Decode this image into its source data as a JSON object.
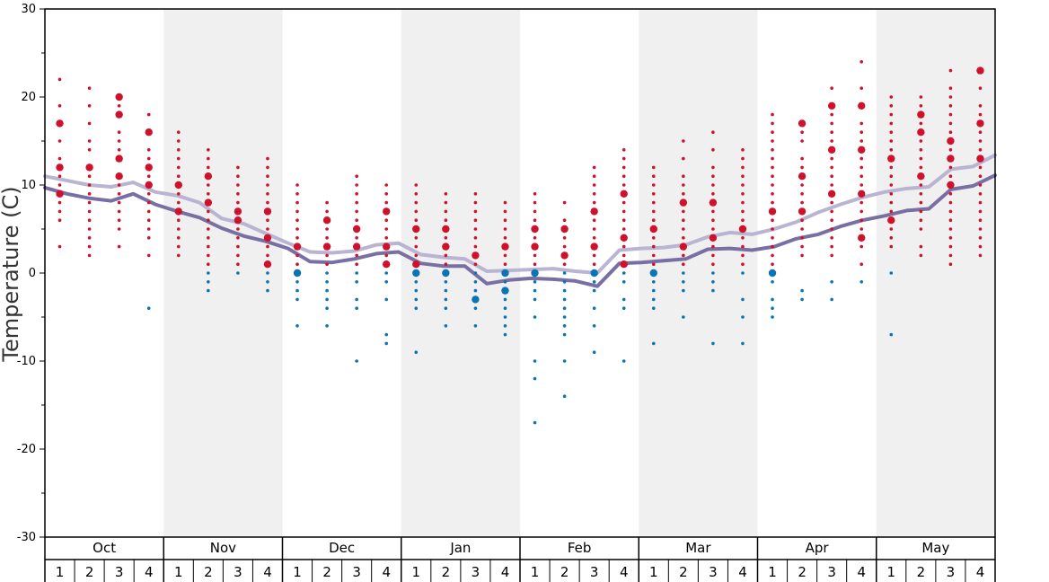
{
  "chart_data": {
    "type": "scatter",
    "ylabel": "Temperature (C)",
    "ylim": [
      -30,
      30
    ],
    "yticks": [
      -30,
      -20,
      -10,
      0,
      10,
      20,
      30
    ],
    "months": [
      "Oct",
      "Nov",
      "Dec",
      "Jan",
      "Feb",
      "Mar",
      "Apr",
      "May"
    ],
    "weeks": [
      "1",
      "2",
      "3",
      "4"
    ],
    "shaded_months": [
      "Nov",
      "Jan",
      "Mar",
      "May"
    ],
    "colors": {
      "warm_dots": "#d0112b",
      "cold_dots": "#0a74b5",
      "upper_line": "#b9b4d2",
      "lower_line": "#7a6fa3",
      "shade": "#f0f0f0"
    },
    "series": [
      {
        "kind": "line",
        "style": "upper",
        "values": [
          11.0,
          10.5,
          10.0,
          9.8,
          10.3,
          9.2,
          8.8,
          8.0,
          6.2,
          5.6,
          4.5,
          3.4,
          2.4,
          2.3,
          2.5,
          3.2,
          3.4,
          2.1,
          1.8,
          1.6,
          0.2,
          0.3,
          0.4,
          0.5,
          0.2,
          0.0,
          2.6,
          2.8,
          2.9,
          3.2,
          4.1,
          4.6,
          4.4,
          5.0,
          5.8,
          6.9,
          7.8,
          8.6,
          9.2,
          9.6,
          9.8,
          11.8,
          12.1,
          13.4
        ]
      },
      {
        "kind": "line",
        "style": "lower",
        "values": [
          9.7,
          9.0,
          8.5,
          8.2,
          9.0,
          7.8,
          7.0,
          6.3,
          5.1,
          4.2,
          3.6,
          2.8,
          1.3,
          1.2,
          1.6,
          2.2,
          2.4,
          1.1,
          0.8,
          0.8,
          -1.2,
          -0.8,
          -0.6,
          -0.7,
          -0.9,
          -1.5,
          1.1,
          1.2,
          1.4,
          1.6,
          2.7,
          2.8,
          2.6,
          3.0,
          3.9,
          4.4,
          5.3,
          6.0,
          6.5,
          7.1,
          7.3,
          9.5,
          9.9,
          11.1
        ]
      }
    ],
    "points": [
      {
        "x": 0,
        "temps": [
          22,
          19,
          17,
          15,
          13,
          12,
          11,
          10,
          9,
          8,
          7,
          6,
          3
        ],
        "big": [
          17,
          12,
          9
        ]
      },
      {
        "x": 1,
        "temps": [
          21,
          19,
          17,
          15,
          14,
          12,
          11,
          10,
          9,
          8,
          7,
          6,
          5,
          4,
          3,
          2
        ],
        "big": [
          12
        ]
      },
      {
        "x": 2,
        "temps": [
          20,
          19,
          18,
          16,
          15,
          14,
          13,
          11,
          10,
          9,
          8,
          7,
          6,
          5,
          3
        ],
        "big": [
          20,
          18,
          13,
          11
        ]
      },
      {
        "x": 3,
        "temps": [
          18,
          16,
          14,
          13,
          12,
          11,
          10,
          9,
          8,
          7,
          6,
          5,
          4,
          2,
          -4
        ],
        "big": [
          16,
          12,
          10
        ]
      },
      {
        "x": 4,
        "temps": [
          16,
          15,
          14,
          13,
          12,
          11,
          10,
          9,
          8,
          7,
          6,
          5,
          4,
          3,
          2
        ],
        "big": [
          10,
          7
        ]
      },
      {
        "x": 5,
        "temps": [
          14,
          13,
          12,
          11,
          10,
          9,
          8,
          7,
          6,
          5,
          4,
          3,
          2,
          1,
          0,
          -1,
          -2
        ],
        "big": [
          11,
          8
        ]
      },
      {
        "x": 6,
        "temps": [
          12,
          11,
          10,
          9,
          8,
          7,
          6,
          5,
          4,
          3,
          2,
          1,
          0
        ],
        "big": [
          7,
          6
        ]
      },
      {
        "x": 7,
        "temps": [
          13,
          12,
          11,
          10,
          9,
          8,
          7,
          6,
          5,
          4,
          3,
          2,
          1,
          0,
          -1,
          -2
        ],
        "big": [
          7,
          4,
          1
        ]
      },
      {
        "x": 8,
        "temps": [
          10,
          9,
          8,
          7,
          6,
          5,
          4,
          3,
          2,
          1,
          0,
          -1,
          -2,
          -3,
          -6
        ],
        "big": [
          3,
          0
        ]
      },
      {
        "x": 9,
        "temps": [
          8,
          7,
          6,
          5,
          4,
          3,
          2,
          1,
          0,
          -1,
          -2,
          -3,
          -4,
          -6
        ],
        "big": [
          6,
          3
        ]
      },
      {
        "x": 10,
        "temps": [
          11,
          10,
          9,
          8,
          7,
          6,
          5,
          4,
          3,
          2,
          1,
          0,
          -1,
          -3,
          -4,
          -10
        ],
        "big": [
          5,
          3
        ]
      },
      {
        "x": 11,
        "temps": [
          10,
          9,
          8,
          7,
          6,
          5,
          4,
          3,
          2,
          1,
          0,
          -1,
          -3,
          -7,
          -8
        ],
        "big": [
          7,
          3,
          1
        ]
      },
      {
        "x": 12,
        "temps": [
          10,
          9,
          8,
          7,
          6,
          5,
          4,
          3,
          2,
          1,
          0,
          -1,
          -2,
          -3,
          -4,
          -9
        ],
        "big": [
          5,
          1,
          0
        ]
      },
      {
        "x": 13,
        "temps": [
          9,
          8,
          7,
          6,
          5,
          4,
          3,
          2,
          1,
          0,
          -1,
          -2,
          -3,
          -4,
          -6
        ],
        "big": [
          5,
          3,
          0
        ]
      },
      {
        "x": 14,
        "temps": [
          9,
          8,
          7,
          6,
          5,
          4,
          3,
          2,
          1,
          0,
          -1,
          -2,
          -3,
          -4,
          -6
        ],
        "big": [
          2,
          -3
        ]
      },
      {
        "x": 15,
        "temps": [
          8,
          7,
          6,
          5,
          4,
          3,
          2,
          1,
          0,
          -1,
          -2,
          -3,
          -4,
          -5,
          -6,
          -7
        ],
        "big": [
          3,
          0,
          -2
        ]
      },
      {
        "x": 16,
        "temps": [
          9,
          8,
          7,
          6,
          5,
          4,
          3,
          2,
          1,
          0,
          -1,
          -2,
          -3,
          -5,
          -10,
          -12,
          -17
        ],
        "big": [
          5,
          3,
          0
        ]
      },
      {
        "x": 17,
        "temps": [
          8,
          6,
          5,
          4,
          3,
          2,
          1,
          0,
          -1,
          -2,
          -3,
          -4,
          -5,
          -6,
          -7,
          -10,
          -14
        ],
        "big": [
          5,
          2
        ]
      },
      {
        "x": 18,
        "temps": [
          12,
          11,
          10,
          9,
          8,
          7,
          6,
          5,
          4,
          3,
          2,
          1,
          0,
          -1,
          -2,
          -4,
          -6,
          -9
        ],
        "big": [
          7,
          3,
          0
        ]
      },
      {
        "x": 19,
        "temps": [
          14,
          13,
          12,
          11,
          10,
          9,
          8,
          7,
          6,
          5,
          4,
          3,
          2,
          1,
          0,
          -1,
          -3,
          -4,
          -10
        ],
        "big": [
          9,
          4,
          1
        ]
      },
      {
        "x": 20,
        "temps": [
          12,
          11,
          10,
          9,
          8,
          7,
          6,
          5,
          4,
          3,
          2,
          1,
          0,
          -1,
          -2,
          -3,
          -4,
          -8
        ],
        "big": [
          5,
          0
        ]
      },
      {
        "x": 21,
        "temps": [
          15,
          13,
          11,
          10,
          9,
          8,
          7,
          6,
          5,
          4,
          3,
          2,
          1,
          0,
          -1,
          -2,
          -5
        ],
        "big": [
          8,
          3
        ]
      },
      {
        "x": 22,
        "temps": [
          16,
          14,
          12,
          11,
          10,
          9,
          8,
          7,
          6,
          5,
          4,
          3,
          2,
          1,
          0,
          -1,
          -2,
          -8
        ],
        "big": [
          8,
          4
        ]
      },
      {
        "x": 23,
        "temps": [
          14,
          13,
          12,
          11,
          10,
          9,
          8,
          7,
          6,
          5,
          4,
          3,
          2,
          1,
          0,
          -3,
          -5,
          -8
        ],
        "big": [
          5
        ]
      },
      {
        "x": 24,
        "temps": [
          18,
          17,
          16,
          15,
          14,
          13,
          12,
          11,
          10,
          9,
          8,
          7,
          6,
          5,
          4,
          3,
          2,
          1,
          0,
          -1,
          -3,
          -4,
          -5
        ],
        "big": [
          7,
          0
        ]
      },
      {
        "x": 25,
        "temps": [
          17,
          16,
          15,
          13,
          12,
          11,
          10,
          9,
          8,
          7,
          6,
          5,
          4,
          3,
          2,
          -2,
          -3
        ],
        "big": [
          17,
          11,
          7
        ]
      },
      {
        "x": 26,
        "temps": [
          21,
          19,
          18,
          17,
          16,
          15,
          14,
          13,
          12,
          11,
          10,
          9,
          8,
          7,
          6,
          5,
          4,
          3,
          2,
          -1,
          -3
        ],
        "big": [
          19,
          14,
          9
        ]
      },
      {
        "x": 27,
        "temps": [
          24,
          21,
          19,
          17,
          16,
          15,
          14,
          13,
          12,
          11,
          10,
          9,
          8,
          7,
          6,
          5,
          4,
          3,
          1,
          -1
        ],
        "big": [
          19,
          14,
          9,
          4
        ]
      },
      {
        "x": 28,
        "temps": [
          20,
          19,
          18,
          17,
          16,
          15,
          14,
          13,
          12,
          11,
          10,
          9,
          8,
          7,
          6,
          5,
          4,
          3,
          0,
          -7
        ],
        "big": [
          13,
          6
        ]
      },
      {
        "x": 29,
        "temps": [
          20,
          19,
          18,
          17,
          16,
          15,
          14,
          13,
          12,
          11,
          10,
          9,
          8,
          7,
          6,
          5,
          3,
          2
        ],
        "big": [
          18,
          16,
          11
        ]
      },
      {
        "x": 30,
        "temps": [
          23,
          21,
          20,
          19,
          18,
          17,
          16,
          15,
          14,
          13,
          12,
          11,
          10,
          9,
          8,
          7,
          6,
          5,
          4,
          3,
          2,
          1
        ],
        "big": [
          15,
          13,
          10
        ]
      },
      {
        "x": 31,
        "temps": [
          23,
          21,
          19,
          18,
          17,
          16,
          15,
          14,
          13,
          12,
          11,
          10,
          9,
          8,
          7,
          6,
          5,
          4,
          3,
          2
        ],
        "big": [
          23,
          17,
          13
        ]
      }
    ]
  }
}
